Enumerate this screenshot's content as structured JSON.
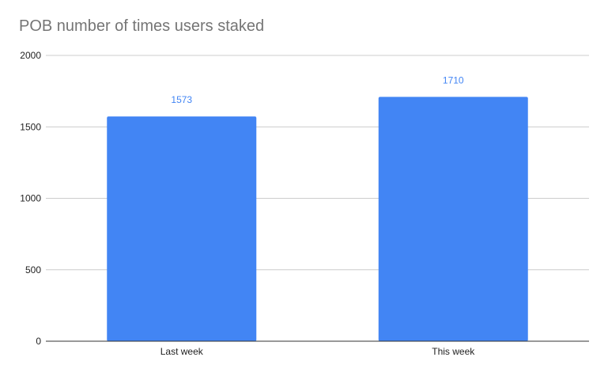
{
  "chart_data": {
    "type": "bar",
    "title": "POB number of times users staked",
    "categories": [
      "Last week",
      "This week"
    ],
    "values": [
      1573,
      1710
    ],
    "xlabel": "",
    "ylabel": "",
    "ylim": [
      0,
      2000
    ],
    "yticks": [
      "0",
      "500",
      "1000",
      "1500",
      "2000"
    ],
    "data_labels": [
      "1573",
      "1710"
    ],
    "grid": true,
    "legend": "none",
    "colors": {
      "bar": "#4285f4",
      "data_label": "#4285f4",
      "title": "#757575",
      "grid": "#cccccc",
      "axis": "#333333",
      "tick_label": "#222222"
    }
  }
}
